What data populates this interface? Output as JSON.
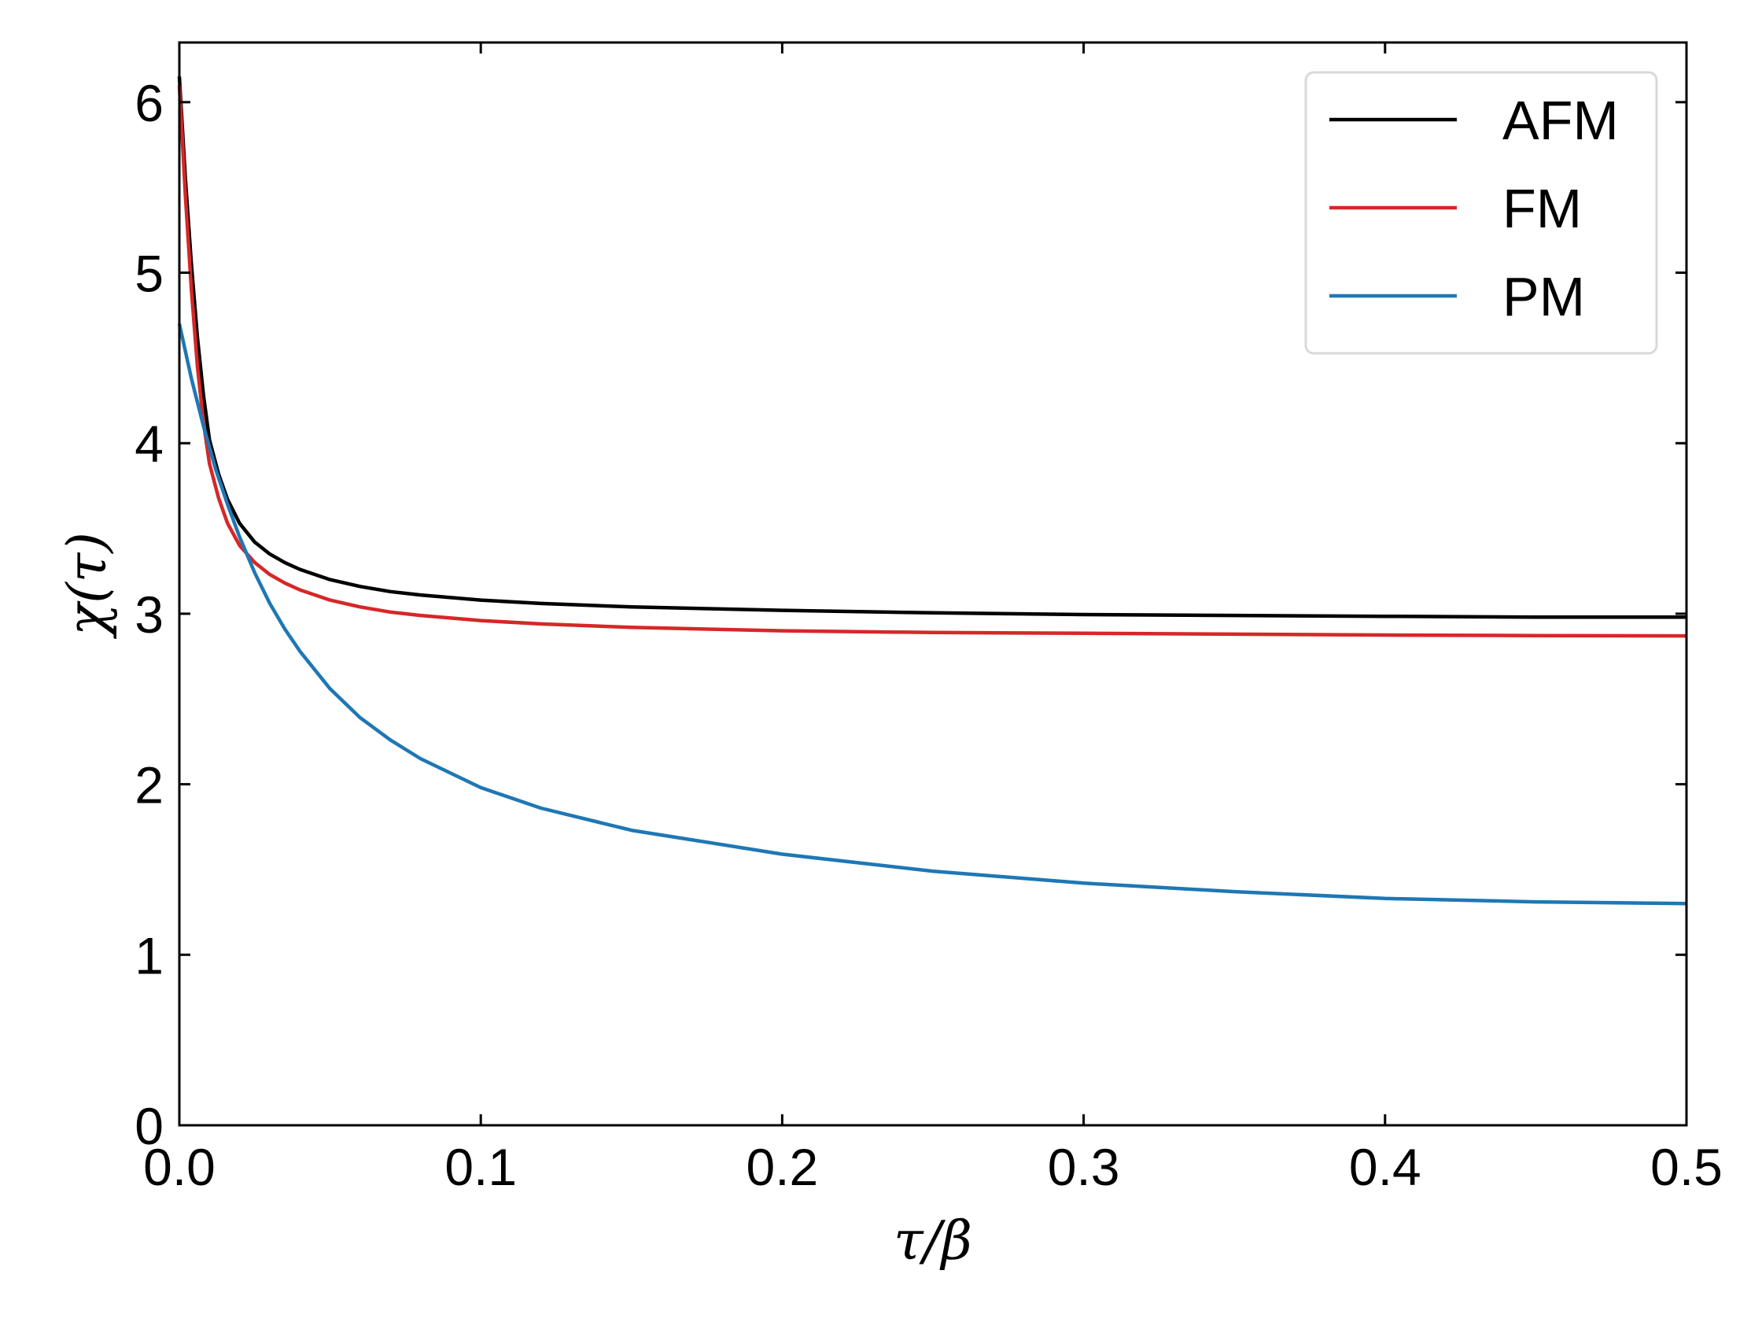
{
  "chart_data": {
    "type": "line",
    "title": "",
    "xlabel": "τ/β",
    "ylabel": "χ(τ)",
    "xlim": [
      0.0,
      0.5
    ],
    "ylim": [
      0,
      6.35
    ],
    "xticks": [
      0.0,
      0.1,
      0.2,
      0.3,
      0.4,
      0.5
    ],
    "xtick_labels": [
      "0.0",
      "0.1",
      "0.2",
      "0.3",
      "0.4",
      "0.5"
    ],
    "yticks": [
      0,
      1,
      2,
      3,
      4,
      5,
      6
    ],
    "ytick_labels": [
      "0",
      "1",
      "2",
      "3",
      "4",
      "5",
      "6"
    ],
    "grid": false,
    "legend_position": "top-right",
    "series": [
      {
        "name": "AFM",
        "color": "#000000",
        "x": [
          0.0,
          0.002,
          0.004,
          0.006,
          0.008,
          0.01,
          0.013,
          0.016,
          0.02,
          0.025,
          0.03,
          0.035,
          0.04,
          0.05,
          0.06,
          0.07,
          0.08,
          0.1,
          0.12,
          0.15,
          0.2,
          0.25,
          0.3,
          0.35,
          0.4,
          0.45,
          0.5
        ],
        "y": [
          6.15,
          5.55,
          5.05,
          4.62,
          4.28,
          4.02,
          3.82,
          3.67,
          3.53,
          3.42,
          3.35,
          3.3,
          3.26,
          3.2,
          3.16,
          3.13,
          3.11,
          3.08,
          3.06,
          3.04,
          3.02,
          3.005,
          2.995,
          2.99,
          2.985,
          2.98,
          2.98
        ]
      },
      {
        "name": "FM",
        "color": "#d62728",
        "x": [
          0.0,
          0.002,
          0.004,
          0.006,
          0.008,
          0.01,
          0.013,
          0.016,
          0.02,
          0.025,
          0.03,
          0.035,
          0.04,
          0.05,
          0.06,
          0.07,
          0.08,
          0.1,
          0.12,
          0.15,
          0.2,
          0.25,
          0.3,
          0.35,
          0.4,
          0.45,
          0.5
        ],
        "y": [
          6.1,
          5.45,
          4.9,
          4.45,
          4.12,
          3.88,
          3.68,
          3.53,
          3.4,
          3.3,
          3.23,
          3.18,
          3.14,
          3.08,
          3.04,
          3.01,
          2.99,
          2.96,
          2.94,
          2.92,
          2.9,
          2.89,
          2.885,
          2.88,
          2.875,
          2.872,
          2.87
        ]
      },
      {
        "name": "PM",
        "color": "#1f77b4",
        "x": [
          0.0,
          0.004,
          0.008,
          0.012,
          0.016,
          0.02,
          0.025,
          0.03,
          0.035,
          0.04,
          0.05,
          0.06,
          0.07,
          0.08,
          0.1,
          0.12,
          0.15,
          0.2,
          0.25,
          0.3,
          0.35,
          0.4,
          0.45,
          0.5
        ],
        "y": [
          4.7,
          4.38,
          4.1,
          3.85,
          3.64,
          3.45,
          3.24,
          3.06,
          2.91,
          2.78,
          2.56,
          2.39,
          2.26,
          2.15,
          1.98,
          1.86,
          1.73,
          1.59,
          1.49,
          1.42,
          1.37,
          1.33,
          1.31,
          1.3
        ]
      }
    ]
  }
}
